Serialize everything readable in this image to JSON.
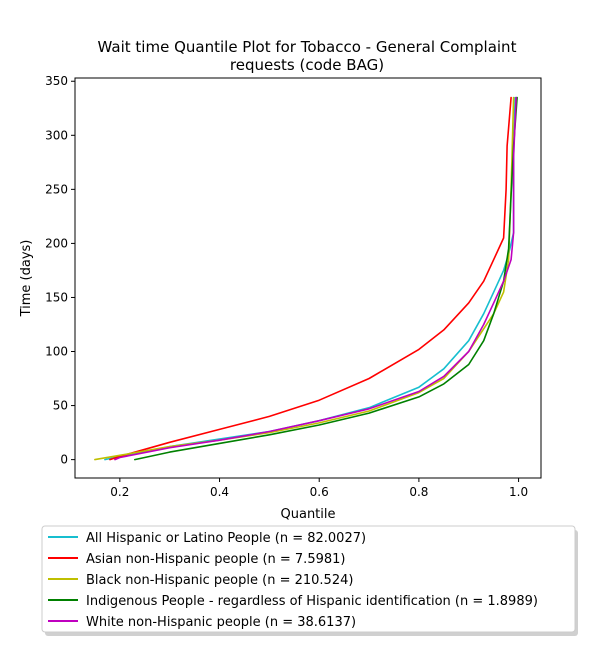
{
  "chart_data": {
    "type": "line",
    "title": "Wait time Quantile Plot for Tobacco - General Complaint requests (code BAG)",
    "title_lines": [
      "Wait time Quantile Plot for Tobacco - General Complaint",
      "requests (code BAG)"
    ],
    "xlabel": "Quantile",
    "ylabel": "Time (days)",
    "xlim": [
      0.11,
      1.045
    ],
    "ylim": [
      -17,
      353
    ],
    "xticks": [
      0.2,
      0.4,
      0.6,
      0.8,
      1.0
    ],
    "xtick_labels": [
      "0.2",
      "0.4",
      "0.6",
      "0.8",
      "1.0"
    ],
    "yticks": [
      0,
      50,
      100,
      150,
      200,
      250,
      300,
      350
    ],
    "ytick_labels": [
      "0",
      "50",
      "100",
      "150",
      "200",
      "250",
      "300",
      "350"
    ],
    "grid": false,
    "legend_position": "below",
    "series": [
      {
        "name": "All Hispanic or Latino People (n = 82.0027)",
        "color": "#17becf",
        "points": [
          [
            0.17,
            0
          ],
          [
            0.2,
            3
          ],
          [
            0.3,
            12
          ],
          [
            0.4,
            19
          ],
          [
            0.5,
            26
          ],
          [
            0.6,
            36
          ],
          [
            0.7,
            48
          ],
          [
            0.8,
            67
          ],
          [
            0.85,
            84
          ],
          [
            0.9,
            110
          ],
          [
            0.93,
            135
          ],
          [
            0.95,
            155
          ],
          [
            0.97,
            175
          ],
          [
            0.98,
            190
          ],
          [
            0.99,
            210
          ],
          [
            0.99,
            280
          ],
          [
            0.993,
            335
          ]
        ]
      },
      {
        "name": "Asian non-Hispanic people (n = 7.5981)",
        "color": "#ff0000",
        "points": [
          [
            0.18,
            0
          ],
          [
            0.2,
            3
          ],
          [
            0.3,
            16
          ],
          [
            0.4,
            28
          ],
          [
            0.5,
            40
          ],
          [
            0.6,
            55
          ],
          [
            0.7,
            75
          ],
          [
            0.8,
            102
          ],
          [
            0.85,
            120
          ],
          [
            0.9,
            145
          ],
          [
            0.93,
            165
          ],
          [
            0.95,
            185
          ],
          [
            0.97,
            205
          ],
          [
            0.975,
            250
          ],
          [
            0.977,
            290
          ],
          [
            0.985,
            335
          ]
        ]
      },
      {
        "name": "Black non-Hispanic people (n = 210.524)",
        "color": "#bfbf00",
        "points": [
          [
            0.15,
            0
          ],
          [
            0.2,
            4
          ],
          [
            0.3,
            12
          ],
          [
            0.4,
            18
          ],
          [
            0.5,
            25
          ],
          [
            0.6,
            34
          ],
          [
            0.7,
            45
          ],
          [
            0.8,
            62
          ],
          [
            0.85,
            75
          ],
          [
            0.9,
            100
          ],
          [
            0.95,
            135
          ],
          [
            0.97,
            155
          ],
          [
            0.98,
            185
          ],
          [
            0.985,
            250
          ],
          [
            0.99,
            335
          ]
        ]
      },
      {
        "name": "Indigenous People - regardless of Hispanic identification (n = 1.8989)",
        "color": "#008000",
        "points": [
          [
            0.23,
            0
          ],
          [
            0.3,
            7
          ],
          [
            0.4,
            15
          ],
          [
            0.5,
            23
          ],
          [
            0.6,
            32
          ],
          [
            0.7,
            43
          ],
          [
            0.8,
            58
          ],
          [
            0.85,
            70
          ],
          [
            0.9,
            88
          ],
          [
            0.93,
            110
          ],
          [
            0.95,
            135
          ],
          [
            0.97,
            165
          ],
          [
            0.98,
            195
          ],
          [
            0.985,
            245
          ],
          [
            0.99,
            290
          ],
          [
            0.997,
            335
          ]
        ]
      },
      {
        "name": "White non-Hispanic people (n = 38.6137)",
        "color": "#bf00bf",
        "points": [
          [
            0.19,
            0
          ],
          [
            0.2,
            2
          ],
          [
            0.3,
            11
          ],
          [
            0.4,
            18
          ],
          [
            0.5,
            26
          ],
          [
            0.6,
            36
          ],
          [
            0.7,
            47
          ],
          [
            0.8,
            63
          ],
          [
            0.85,
            77
          ],
          [
            0.9,
            100
          ],
          [
            0.93,
            125
          ],
          [
            0.95,
            145
          ],
          [
            0.97,
            165
          ],
          [
            0.985,
            185
          ],
          [
            0.99,
            210
          ],
          [
            0.99,
            280
          ],
          [
            0.995,
            335
          ]
        ]
      }
    ]
  }
}
